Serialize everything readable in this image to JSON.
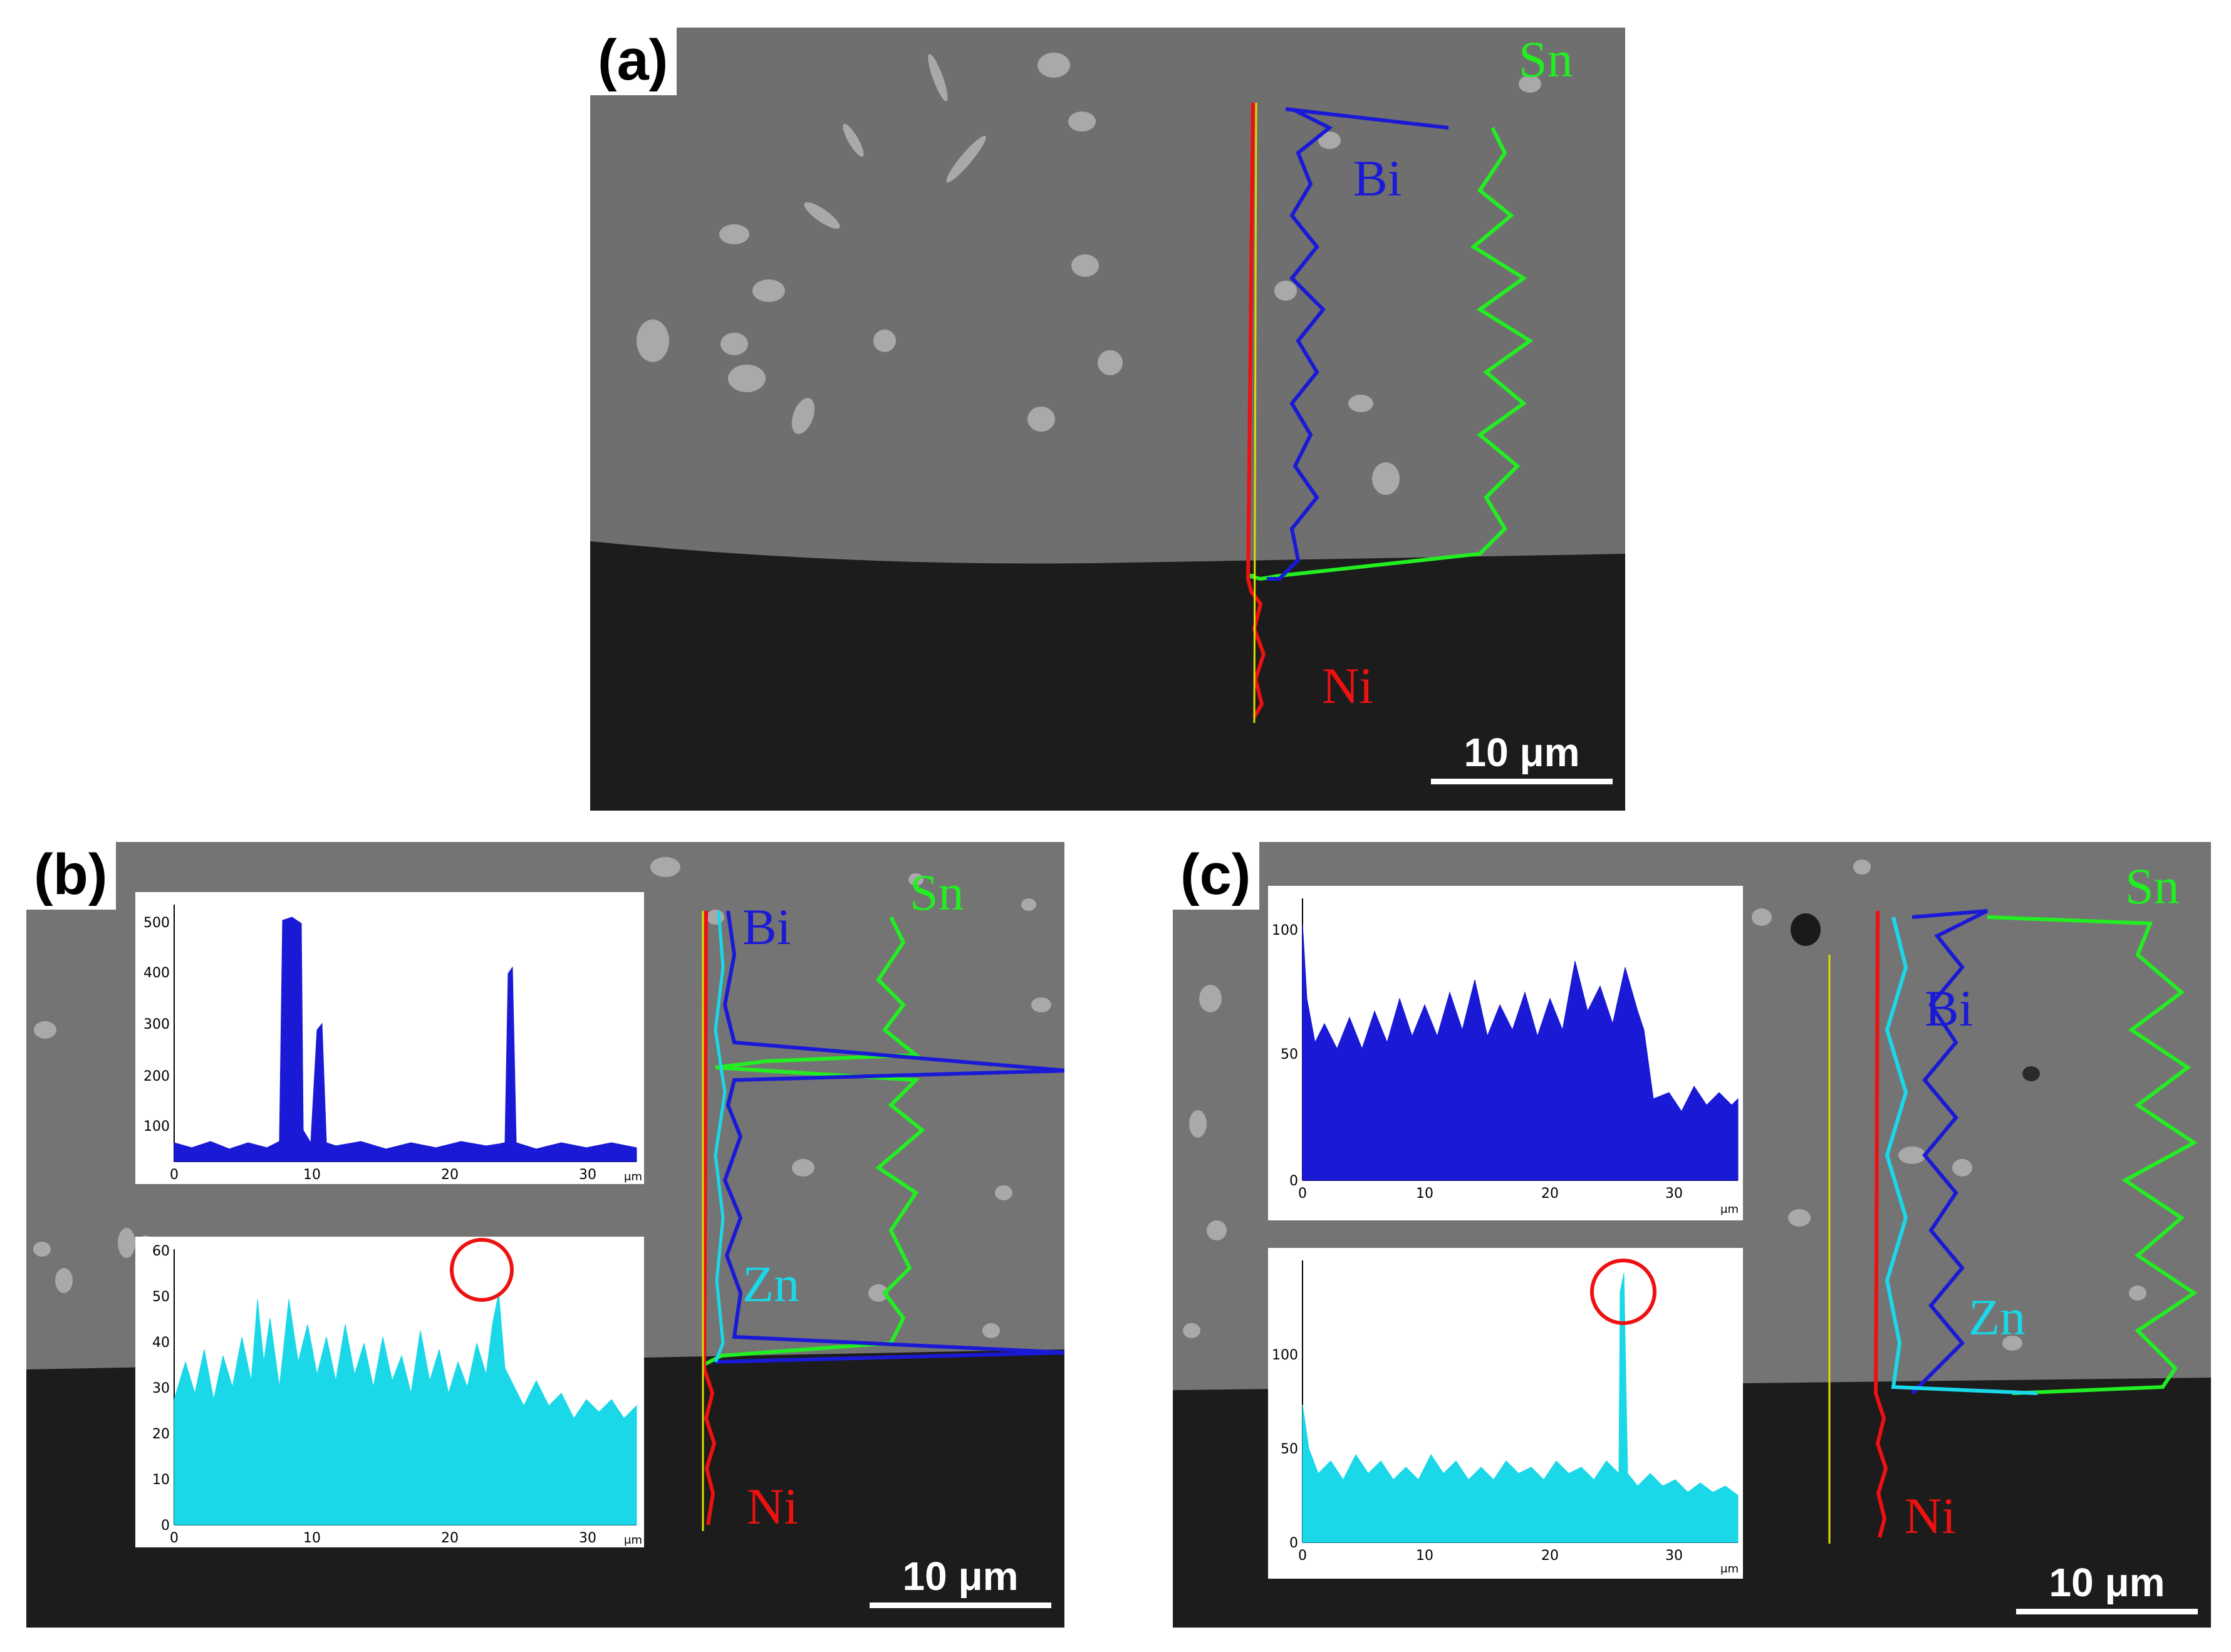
{
  "panels": {
    "a": {
      "label": "(a)",
      "scale_bar": "10 μm",
      "elements": {
        "sn": "Sn",
        "bi": "Bi",
        "ni": "Ni"
      }
    },
    "b": {
      "label": "(b)",
      "scale_bar": "10 μm",
      "elements": {
        "sn": "Sn",
        "bi": "Bi",
        "zn": "Zn",
        "ni": "Ni"
      },
      "inset_bi": {
        "x_ticks": [
          "0",
          "10",
          "20",
          "30"
        ],
        "x_unit": "μm",
        "y_ticks": [
          "100",
          "200",
          "300",
          "400",
          "500"
        ]
      },
      "inset_zn": {
        "x_ticks": [
          "0",
          "10",
          "20",
          "30"
        ],
        "x_unit": "μm",
        "y_ticks": [
          "0",
          "10",
          "20",
          "30",
          "40",
          "50",
          "60"
        ]
      }
    },
    "c": {
      "label": "(c)",
      "scale_bar": "10 μm",
      "elements": {
        "sn": "Sn",
        "bi": "Bi",
        "zn": "Zn",
        "ni": "Ni"
      },
      "inset_bi": {
        "x_ticks": [
          "0",
          "10",
          "20",
          "30"
        ],
        "x_unit": "μm",
        "y_ticks": [
          "0",
          "50",
          "100"
        ]
      },
      "inset_zn": {
        "x_ticks": [
          "0",
          "10",
          "20",
          "30"
        ],
        "x_unit": "μm",
        "y_ticks": [
          "0",
          "50",
          "100"
        ]
      }
    }
  },
  "colors": {
    "sn": "#22ee22",
    "bi": "#1a1ad6",
    "zn": "#1ad8e8",
    "ni": "#ee1111",
    "highlight_circle": "#ee1111"
  }
}
